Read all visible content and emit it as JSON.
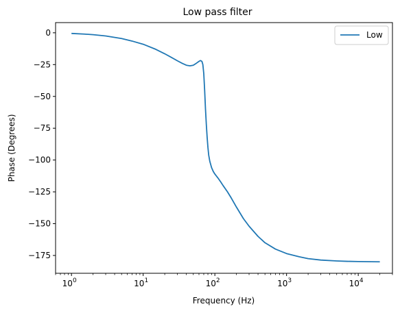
{
  "chart_data": {
    "type": "line",
    "title": "Low pass filter",
    "xlabel": "Frequency (Hz)",
    "ylabel": "Phase (Degrees)",
    "xscale": "log",
    "xlim": [
      0.6,
      30000
    ],
    "ylim": [
      -189,
      8
    ],
    "x_ticks": [
      {
        "value": 1,
        "base": "10",
        "exp": "0"
      },
      {
        "value": 10,
        "base": "10",
        "exp": "1"
      },
      {
        "value": 100,
        "base": "10",
        "exp": "2"
      },
      {
        "value": 1000,
        "base": "10",
        "exp": "3"
      },
      {
        "value": 10000,
        "base": "10",
        "exp": "4"
      }
    ],
    "y_ticks": [
      {
        "value": 0,
        "label": "0"
      },
      {
        "value": -25,
        "label": "−25"
      },
      {
        "value": -50,
        "label": "−50"
      },
      {
        "value": -75,
        "label": "−75"
      },
      {
        "value": -100,
        "label": "−100"
      },
      {
        "value": -125,
        "label": "−125"
      },
      {
        "value": -150,
        "label": "−150"
      },
      {
        "value": -175,
        "label": "−175"
      }
    ],
    "grid": false,
    "legend_position": "top-right",
    "series": [
      {
        "name": "Low",
        "color": "#1f77b4",
        "x": [
          1,
          1.5,
          2,
          3,
          5,
          7,
          10,
          15,
          20,
          25,
          30,
          35,
          40,
          45,
          50,
          55,
          60,
          63,
          66,
          68,
          70,
          72,
          74,
          76,
          78,
          80,
          82,
          85,
          90,
          95,
          100,
          110,
          120,
          130,
          150,
          170,
          200,
          250,
          300,
          400,
          500,
          700,
          1000,
          1500,
          2000,
          3000,
          5000,
          7000,
          10000,
          15000,
          20000
        ],
        "y": [
          -0.5,
          -1.0,
          -1.5,
          -2.5,
          -4.5,
          -6.5,
          -9.0,
          -13.0,
          -16.5,
          -19.5,
          -22.0,
          -24.0,
          -25.5,
          -26.0,
          -25.5,
          -24.0,
          -22.5,
          -21.8,
          -22.5,
          -25.0,
          -32.0,
          -45.0,
          -60.0,
          -72.0,
          -82.0,
          -90.0,
          -96.0,
          -101.0,
          -106.0,
          -109.0,
          -111.0,
          -114.0,
          -117.0,
          -120.0,
          -125.0,
          -130.0,
          -137.0,
          -146.0,
          -152.0,
          -160.0,
          -165.0,
          -170.0,
          -173.5,
          -176.0,
          -177.5,
          -178.6,
          -179.3,
          -179.6,
          -179.8,
          -179.9,
          -180.0
        ]
      }
    ]
  }
}
